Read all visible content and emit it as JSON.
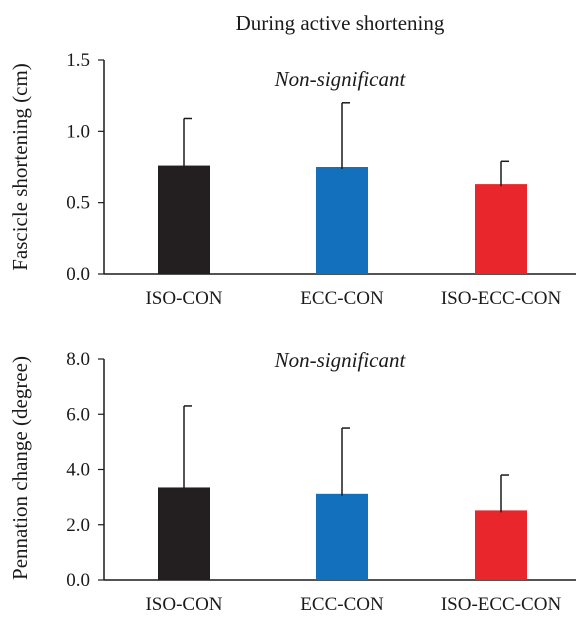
{
  "figure_title": "During active shortening",
  "chart_data": [
    {
      "type": "bar",
      "title": "",
      "annotation": "Non-significant",
      "ylabel": "Fascicle shortening (cm)",
      "xlabel": "",
      "categories": [
        "ISO-CON",
        "ECC-CON",
        "ISO-ECC-CON"
      ],
      "values": [
        0.76,
        0.75,
        0.63
      ],
      "error_upper": [
        0.33,
        0.45,
        0.16
      ],
      "colors": [
        "#231f20",
        "#1270bd",
        "#e8262b"
      ],
      "ylim": [
        0,
        1.5
      ],
      "yticks": [
        "0.0",
        "0.5",
        "1.0",
        "1.5"
      ],
      "grid": false
    },
    {
      "type": "bar",
      "title": "",
      "annotation": "Non-significant",
      "ylabel": "Pennation change (degree)",
      "xlabel": "",
      "categories": [
        "ISO-CON",
        "ECC-CON",
        "ISO-ECC-CON"
      ],
      "values": [
        3.35,
        3.12,
        2.52
      ],
      "error_upper": [
        2.95,
        2.38,
        1.28
      ],
      "colors": [
        "#231f20",
        "#1270bd",
        "#e8262b"
      ],
      "ylim": [
        0,
        8
      ],
      "yticks": [
        "0.0",
        "2.0",
        "4.0",
        "6.0",
        "8.0"
      ],
      "grid": false
    }
  ]
}
